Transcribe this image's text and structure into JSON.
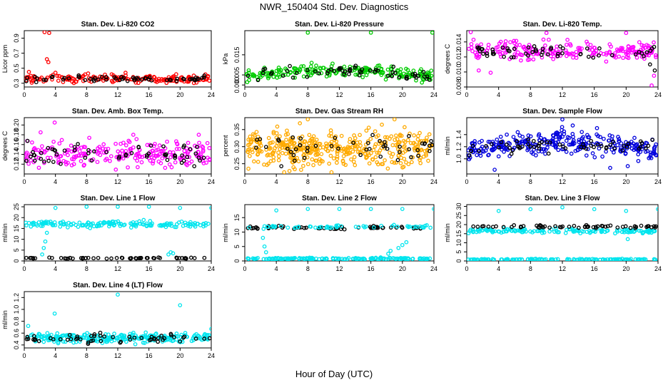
{
  "title": "NWR_150404  Std. Dev. Diagnostics",
  "xlabel": "Hour of Day (UTC)",
  "chart_data": [
    {
      "type": "scatter",
      "title": "Stan. Dev. Li-820 CO2",
      "ylabel": "Licor ppm",
      "xlim": [
        0,
        24
      ],
      "ylim": [
        0.25,
        1.0
      ],
      "yticks": [
        0.3,
        0.5,
        0.7,
        0.9
      ],
      "ytick_labels": [
        "0.3",
        "0.5",
        "0.7",
        "0.9"
      ],
      "xticks": [
        0,
        4,
        8,
        12,
        16,
        20,
        24
      ],
      "color": "#ff0000",
      "series": [
        {
          "name": "",
          "color": "#ff0000",
          "base": 0.36,
          "spread": 0.025,
          "trend": 0,
          "n": 180,
          "extra": [
            [
              2.6,
              0.98
            ],
            [
              3.2,
              0.97
            ],
            [
              2.9,
              0.62
            ],
            [
              3.1,
              0.58
            ],
            [
              0.6,
              0.45
            ],
            [
              4.0,
              0.44
            ],
            [
              8.2,
              0.43
            ],
            [
              13.0,
              0.44
            ],
            [
              19.5,
              0.42
            ]
          ]
        },
        {
          "name": "",
          "color": "#000000",
          "base": 0.36,
          "spread": 0.02,
          "trend": 0,
          "n": 60,
          "extra": []
        }
      ]
    },
    {
      "type": "scatter",
      "title": "Stan. Dev. Li-820 Pressure",
      "ylabel": "kPa",
      "xlim": [
        0,
        24
      ],
      "ylim": [
        -0.001,
        0.027
      ],
      "yticks": [
        0.0,
        0.005,
        0.015
      ],
      "ytick_labels": [
        "0.000",
        "0.005",
        "0.015"
      ],
      "xticks": [
        0,
        4,
        8,
        12,
        16,
        20,
        24
      ],
      "series": [
        {
          "name": "",
          "color": "#00cc00",
          "base": 0.0045,
          "spread": 0.0015,
          "trend": 0.0028,
          "n": 220,
          "extra": [
            [
              8.0,
              0.026
            ],
            [
              16.0,
              0.026
            ],
            [
              23.8,
              0.026
            ]
          ]
        },
        {
          "name": "",
          "color": "#000000",
          "base": 0.004,
          "spread": 0.0015,
          "trend": 0.0025,
          "n": 60,
          "extra": []
        }
      ]
    },
    {
      "type": "scatter",
      "title": "Stan. Dev. Li-820 Temp.",
      "ylabel": "degrees C",
      "xlim": [
        0,
        24
      ],
      "ylim": [
        0.008,
        0.0155
      ],
      "yticks": [
        0.008,
        0.01,
        0.012,
        0.014
      ],
      "ytick_labels": [
        "0.008",
        "0.010",
        "0.012",
        "0.014"
      ],
      "xticks": [
        0,
        4,
        8,
        12,
        16,
        20,
        24
      ],
      "series": [
        {
          "name": "",
          "color": "#ff00ff",
          "base": 0.0128,
          "spread": 0.0006,
          "trend": 0,
          "n": 220,
          "extra": [
            [
              0.5,
              0.0153
            ],
            [
              1.5,
              0.0102
            ],
            [
              3.0,
              0.0099
            ],
            [
              10.0,
              0.0152
            ],
            [
              20.0,
              0.0152
            ],
            [
              23.2,
              0.0082
            ],
            [
              23.5,
              0.0095
            ]
          ]
        },
        {
          "name": "",
          "color": "#000000",
          "base": 0.0127,
          "spread": 0.0004,
          "trend": 0,
          "n": 55,
          "extra": [
            [
              23.0,
              0.011
            ],
            [
              23.6,
              0.0102
            ]
          ]
        }
      ]
    },
    {
      "type": "scatter",
      "title": "Stan. Dev. Amb. Box Temp.",
      "ylabel": "degrees C",
      "xlim": [
        0,
        24
      ],
      "ylim": [
        0.1,
        0.215
      ],
      "yticks": [
        0.12,
        0.14,
        0.16,
        0.18,
        0.2
      ],
      "ytick_labels": [
        "0.12",
        "0.14",
        "0.16",
        "0.18",
        "0.20"
      ],
      "xticks": [
        0,
        4,
        8,
        12,
        16,
        20,
        24
      ],
      "series": [
        {
          "name": "",
          "color": "#ff00ff",
          "base": 0.142,
          "spread": 0.014,
          "trend": 0,
          "n": 230,
          "extra": [
            [
              3.9,
              0.205
            ],
            [
              2.1,
              0.185
            ],
            [
              14.0,
              0.18
            ],
            [
              22.4,
              0.18
            ]
          ]
        },
        {
          "name": "",
          "color": "#000000",
          "base": 0.14,
          "spread": 0.012,
          "trend": 0,
          "n": 60,
          "extra": []
        }
      ]
    },
    {
      "type": "scatter",
      "title": "Stan. Dev. Gas Stream RH",
      "ylabel": "percent",
      "xlim": [
        0,
        24
      ],
      "ylim": [
        0.22,
        0.385
      ],
      "yticks": [
        0.25,
        0.3,
        0.35
      ],
      "ytick_labels": [
        "0.25",
        "0.30",
        "0.35"
      ],
      "xticks": [
        0,
        4,
        8,
        12,
        16,
        20,
        24
      ],
      "series": [
        {
          "name": "",
          "color": "#ffaa00",
          "base": 0.295,
          "spread": 0.025,
          "trend": 0,
          "n": 420,
          "extra": [
            [
              8.0,
              0.38
            ],
            [
              19.0,
              0.38
            ],
            [
              5.0,
              0.225
            ],
            [
              11.0,
              0.225
            ]
          ]
        },
        {
          "name": "",
          "color": "#000000",
          "base": 0.295,
          "spread": 0.02,
          "trend": 0,
          "n": 50,
          "extra": []
        }
      ]
    },
    {
      "type": "scatter",
      "title": "Stan. Dev. Sample Flow",
      "ylabel": "ml/min",
      "xlim": [
        0,
        24
      ],
      "ylim": [
        0.75,
        1.68
      ],
      "yticks": [
        1.0,
        1.2,
        1.4
      ],
      "ytick_labels": [
        "1.0",
        "1.2",
        "1.4"
      ],
      "xticks": [
        0,
        4,
        8,
        12,
        16,
        20,
        24
      ],
      "series": [
        {
          "name": "",
          "color": "#0000dd",
          "base": 1.15,
          "spread": 0.09,
          "trend": 0.12,
          "n": 300,
          "extra": [
            [
              12.0,
              1.65
            ],
            [
              13.3,
              1.55
            ],
            [
              3.5,
              0.82
            ],
            [
              18.0,
              0.85
            ],
            [
              20.2,
              0.88
            ]
          ]
        },
        {
          "name": "",
          "color": "#000000",
          "base": 1.17,
          "spread": 0.06,
          "trend": 0.05,
          "n": 60,
          "extra": []
        }
      ]
    },
    {
      "type": "scatter",
      "title": "Stan. Dev. Line 1 Flow",
      "ylabel": "ml/min",
      "xlim": [
        0,
        24
      ],
      "ylim": [
        0,
        26
      ],
      "yticks": [
        0,
        5,
        10,
        15,
        20,
        25
      ],
      "ytick_labels": [
        "0",
        "5",
        "10",
        "15",
        "20",
        "25"
      ],
      "xticks": [
        0,
        4,
        8,
        12,
        16,
        20,
        24
      ],
      "series": [
        {
          "name": "",
          "color": "#00e5ee",
          "base": 17.0,
          "spread": 0.7,
          "trend": 0,
          "n": 160,
          "extra": [
            [
              4.0,
              24.5
            ],
            [
              8.0,
              25.0
            ],
            [
              12.0,
              25.0
            ],
            [
              16.0,
              25.0
            ],
            [
              20.0,
              24.5
            ],
            [
              24.0,
              24.5
            ],
            [
              2.3,
              3.0
            ],
            [
              2.5,
              6.0
            ],
            [
              2.7,
              9.0
            ],
            [
              2.9,
              13.0
            ],
            [
              18.5,
              3.0
            ],
            [
              18.8,
              4.0
            ],
            [
              19.1,
              3.5
            ]
          ]
        },
        {
          "name": "",
          "color": "#000000",
          "base": 1.3,
          "spread": 0.12,
          "trend": 0,
          "n": 55,
          "extra": []
        }
      ]
    },
    {
      "type": "scatter",
      "title": "Stan. Dev. Line 2 Flow",
      "ylabel": "ml/min",
      "xlim": [
        0,
        24
      ],
      "ylim": [
        0,
        19.5
      ],
      "yticks": [
        0,
        5,
        10,
        15
      ],
      "ytick_labels": [
        "0",
        "5",
        "10",
        "15"
      ],
      "xticks": [
        0,
        4,
        8,
        12,
        16,
        20,
        24
      ],
      "series": [
        {
          "name": "",
          "color": "#00e5ee",
          "base": 0.8,
          "spread": 0.15,
          "trend": 0,
          "n": 160,
          "extra": [
            [
              4.0,
              17.5
            ],
            [
              8.0,
              18.0
            ],
            [
              12.0,
              18.0
            ],
            [
              16.0,
              18.0
            ],
            [
              20.0,
              18.0
            ],
            [
              24.0,
              18.0
            ],
            [
              2.3,
              8.0
            ],
            [
              2.5,
              5.0
            ],
            [
              2.7,
              3.0
            ],
            [
              18.2,
              2.5
            ],
            [
              18.5,
              3.5
            ],
            [
              20.0,
              5.5
            ],
            [
              20.5,
              6.5
            ],
            [
              19.5,
              4.5
            ]
          ]
        },
        {
          "name": "",
          "color": "#000000",
          "base": 11.5,
          "spread": 0.3,
          "trend": 0,
          "n": 60,
          "extra": []
        },
        {
          "name": "",
          "color": "#00e5ee",
          "base": 11.8,
          "spread": 0.3,
          "trend": 0,
          "n": 60,
          "extra": []
        }
      ]
    },
    {
      "type": "scatter",
      "title": "Stan. Dev. Line 3 Flow",
      "ylabel": "ml/min",
      "xlim": [
        0,
        24
      ],
      "ylim": [
        0,
        31
      ],
      "yticks": [
        0,
        5,
        10,
        15,
        20,
        25,
        30
      ],
      "ytick_labels": [
        "0",
        "5",
        "10",
        "15",
        "20",
        "25",
        "30"
      ],
      "xticks": [
        0,
        4,
        8,
        12,
        16,
        20,
        24
      ],
      "series": [
        {
          "name": "",
          "color": "#00e5ee",
          "base": 16.5,
          "spread": 0.6,
          "trend": 0,
          "n": 150,
          "extra": [
            [
              4.0,
              27.5
            ],
            [
              8.0,
              28.5
            ],
            [
              12.0,
              29.5
            ],
            [
              16.0,
              28.5
            ],
            [
              20.0,
              27.5
            ],
            [
              24.0,
              28.5
            ],
            [
              20.2,
              12.0
            ]
          ]
        },
        {
          "name": "",
          "color": "#00e5ee",
          "base": 0.8,
          "spread": 0.15,
          "trend": 0,
          "n": 150,
          "extra": []
        },
        {
          "name": "",
          "color": "#000000",
          "base": 19.0,
          "spread": 0.4,
          "trend": 0,
          "n": 60,
          "extra": []
        }
      ]
    },
    {
      "type": "scatter",
      "title": "Stan. Dev. Line 4 (LT) Flow",
      "ylabel": "ml/min",
      "xlim": [
        0,
        24
      ],
      "ylim": [
        0.35,
        1.3
      ],
      "yticks": [
        0.4,
        0.6,
        0.8,
        1.0,
        1.2
      ],
      "ytick_labels": [
        "0.4",
        "0.6",
        "0.8",
        "1.0",
        "1.2"
      ],
      "xticks": [
        0,
        4,
        8,
        12,
        16,
        20,
        24
      ],
      "series": [
        {
          "name": "",
          "color": "#00e5ee",
          "base": 0.52,
          "spread": 0.04,
          "trend": 0,
          "n": 240,
          "extra": [
            [
              12.0,
              1.25
            ],
            [
              20.0,
              1.07
            ],
            [
              3.9,
              0.93
            ],
            [
              0.5,
              0.72
            ],
            [
              24.0,
              0.67
            ]
          ]
        },
        {
          "name": "",
          "color": "#000000",
          "base": 0.51,
          "spread": 0.04,
          "trend": 0,
          "n": 55,
          "extra": []
        }
      ]
    }
  ]
}
